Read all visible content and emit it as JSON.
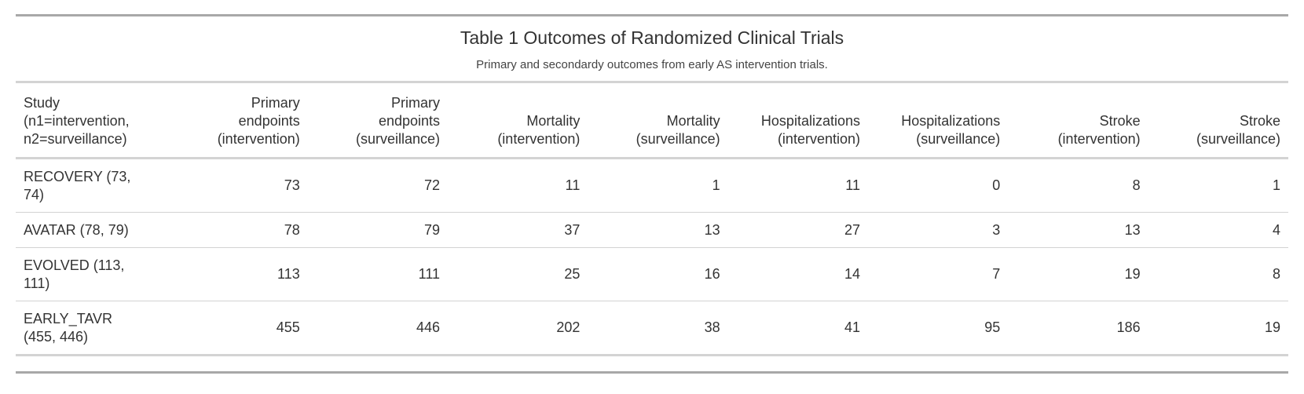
{
  "table": {
    "title": "Table 1 Outcomes of Randomized Clinical Trials",
    "subtitle": "Primary and secondardy outcomes from early AS intervention trials.",
    "columns": [
      "Study\n(n1=intervention,\nn2=surveillance)",
      "Primary\nendpoints\n(intervention)",
      "Primary\nendpoints\n(surveillance)",
      "Mortality\n(intervention)",
      "Mortality\n(surveillance)",
      "Hospitalizations\n(intervention)",
      "Hospitalizations\n(surveillance)",
      "Stroke\n(intervention)",
      "Stroke\n(surveillance)"
    ],
    "rows": [
      [
        "RECOVERY (73,\n74)",
        "73",
        "72",
        "11",
        "1",
        "11",
        "0",
        "8",
        "1"
      ],
      [
        "AVATAR (78, 79)",
        "78",
        "79",
        "37",
        "13",
        "27",
        "3",
        "13",
        "4"
      ],
      [
        "EVOLVED (113,\n111)",
        "113",
        "111",
        "25",
        "16",
        "14",
        "7",
        "19",
        "8"
      ],
      [
        "EARLY_TAVR\n(455, 446)",
        "455",
        "446",
        "202",
        "38",
        "41",
        "95",
        "186",
        "19"
      ]
    ]
  }
}
